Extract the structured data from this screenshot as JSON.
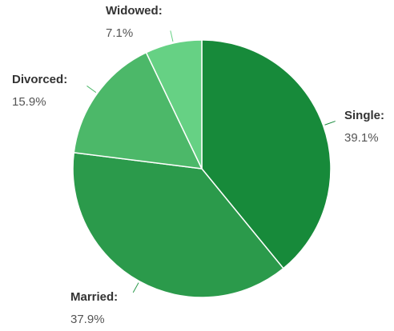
{
  "chart_data": {
    "type": "pie",
    "categories": [
      "Single:",
      "Married:",
      "Divorced:",
      "Widowed:"
    ],
    "values": [
      39.1,
      37.9,
      15.9,
      7.1
    ],
    "value_labels": [
      "39.1%",
      "37.9%",
      "15.9%",
      "7.1%"
    ],
    "colors": [
      "#178a3a",
      "#2b9a4b",
      "#4cb869",
      "#66d184"
    ]
  }
}
